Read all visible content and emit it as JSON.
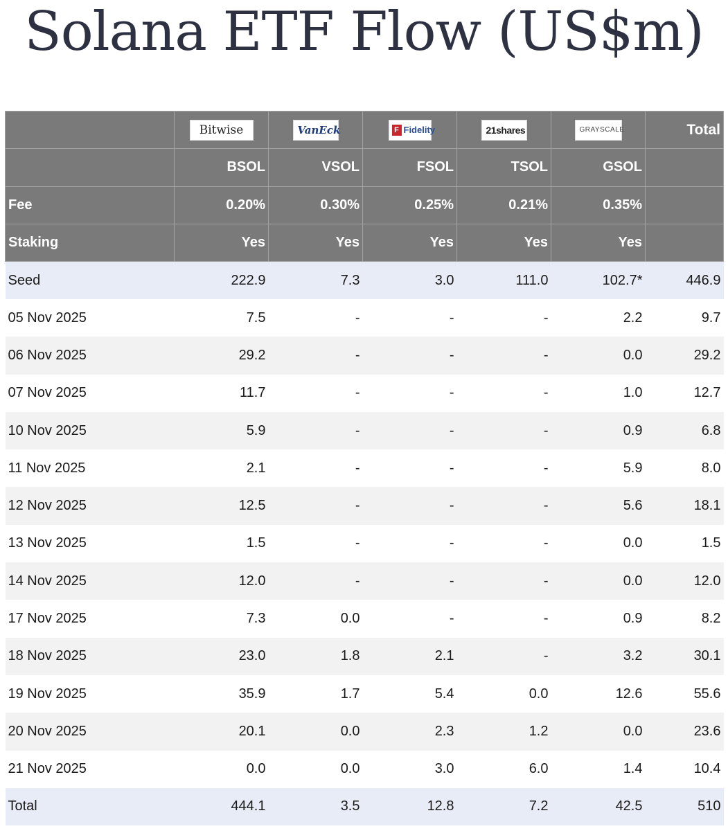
{
  "title": "Solana ETF Flow (US$m)",
  "issuers": [
    {
      "logo_text": "Bitwise",
      "logo_icon": "bitwise-logo"
    },
    {
      "logo_text": "VanEck",
      "logo_icon": "vaneck-logo"
    },
    {
      "logo_text": "Fidelity",
      "logo_icon": "fidelity-logo"
    },
    {
      "logo_text": "21shares",
      "logo_icon": "21shares-logo"
    },
    {
      "logo_text": "GRAYSCALE",
      "logo_icon": "grayscale-logo"
    }
  ],
  "fidelity_mark": "F",
  "header": {
    "total_label": "Total",
    "tickers": [
      "BSOL",
      "VSOL",
      "FSOL",
      "TSOL",
      "GSOL"
    ],
    "fee_label": "Fee",
    "fees": [
      "0.20%",
      "0.30%",
      "0.25%",
      "0.21%",
      "0.35%"
    ],
    "staking_label": "Staking",
    "staking": [
      "Yes",
      "Yes",
      "Yes",
      "Yes",
      "Yes"
    ]
  },
  "rows": [
    {
      "label": "Seed",
      "values": [
        "222.9",
        "7.3",
        "3.0",
        "111.0",
        "102.7*"
      ],
      "total": "446.9"
    },
    {
      "label": "05 Nov 2025",
      "values": [
        "7.5",
        "-",
        "-",
        "-",
        "2.2"
      ],
      "total": "9.7"
    },
    {
      "label": "06 Nov 2025",
      "values": [
        "29.2",
        "-",
        "-",
        "-",
        "0.0"
      ],
      "total": "29.2"
    },
    {
      "label": "07 Nov 2025",
      "values": [
        "11.7",
        "-",
        "-",
        "-",
        "1.0"
      ],
      "total": "12.7"
    },
    {
      "label": "10 Nov 2025",
      "values": [
        "5.9",
        "-",
        "-",
        "-",
        "0.9"
      ],
      "total": "6.8"
    },
    {
      "label": "11 Nov 2025",
      "values": [
        "2.1",
        "-",
        "-",
        "-",
        "5.9"
      ],
      "total": "8.0"
    },
    {
      "label": "12 Nov 2025",
      "values": [
        "12.5",
        "-",
        "-",
        "-",
        "5.6"
      ],
      "total": "18.1"
    },
    {
      "label": "13 Nov 2025",
      "values": [
        "1.5",
        "-",
        "-",
        "-",
        "0.0"
      ],
      "total": "1.5"
    },
    {
      "label": "14 Nov 2025",
      "values": [
        "12.0",
        "-",
        "-",
        "-",
        "0.0"
      ],
      "total": "12.0"
    },
    {
      "label": "17 Nov 2025",
      "values": [
        "7.3",
        "0.0",
        "-",
        "-",
        "0.9"
      ],
      "total": "8.2"
    },
    {
      "label": "18 Nov 2025",
      "values": [
        "23.0",
        "1.8",
        "2.1",
        "-",
        "3.2"
      ],
      "total": "30.1"
    },
    {
      "label": "19 Nov 2025",
      "values": [
        "35.9",
        "1.7",
        "5.4",
        "0.0",
        "12.6"
      ],
      "total": "55.6"
    },
    {
      "label": "20 Nov 2025",
      "values": [
        "20.1",
        "0.0",
        "2.3",
        "1.2",
        "0.0"
      ],
      "total": "23.6"
    },
    {
      "label": "21 Nov 2025",
      "values": [
        "0.0",
        "0.0",
        "3.0",
        "6.0",
        "1.4"
      ],
      "total": "10.4"
    },
    {
      "label": "Total",
      "values": [
        "444.1",
        "3.5",
        "12.8",
        "7.2",
        "42.5"
      ],
      "total": "510"
    }
  ],
  "colors": {
    "header_bg": "#7a7a7a",
    "highlight_row": "#e8ecf6",
    "alt_row": "#f2f2f2",
    "title": "#2e3142"
  }
}
